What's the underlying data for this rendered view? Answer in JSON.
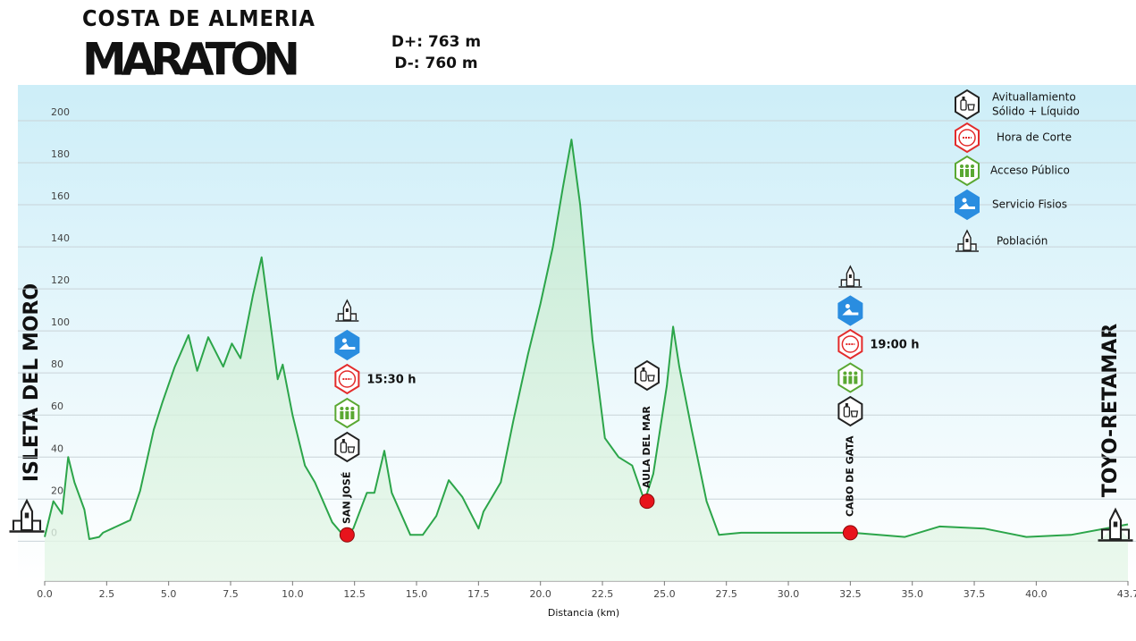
{
  "chart_data": {
    "type": "area",
    "logo_top": "COSTA DE ALMERIA",
    "logo_main": "MARATON",
    "ascent": "D+: 763 m",
    "descent": "D-: 760 m",
    "start": "ISLETA DEL MORO",
    "finish": "TOYO-RETAMAR",
    "xlabel": "Distancia (km)",
    "color": "#2ca54a",
    "x": [
      0,
      0.35,
      0.7,
      0.95,
      1.2,
      1.6,
      1.8,
      2.2,
      2.35,
      3.45,
      3.85,
      4.4,
      4.75,
      5.25,
      5.8,
      6.15,
      6.6,
      7.2,
      7.55,
      7.9,
      8.4,
      8.75,
      9.1,
      9.4,
      9.6,
      10.0,
      10.5,
      10.9,
      11.6,
      12.1,
      12.45,
      13.0,
      13.3,
      13.7,
      14.0,
      14.75,
      15.25,
      15.8,
      16.3,
      16.85,
      17.5,
      17.7,
      18.4,
      18.9,
      19.5,
      20.0,
      20.5,
      20.9,
      21.25,
      21.6,
      22.1,
      22.6,
      23.15,
      23.7,
      24.2,
      24.55,
      25.1,
      25.35,
      25.6,
      26.1,
      26.7,
      27.2,
      28.1,
      31.6,
      32.6,
      34.7,
      36.1,
      37.9,
      39.6,
      41.4,
      43.7
    ],
    "values": [
      2,
      19,
      13,
      40,
      28,
      15,
      1,
      2,
      4,
      10,
      24,
      53,
      66,
      83,
      98,
      81,
      97,
      83,
      94,
      87,
      117,
      135,
      104,
      77,
      84,
      60,
      36,
      28,
      9,
      2,
      6,
      23,
      23,
      43,
      23,
      3,
      3,
      12,
      29,
      21,
      6,
      14,
      28,
      57,
      89,
      113,
      140,
      168,
      191,
      160,
      96,
      49,
      40,
      36,
      19,
      32,
      74,
      102,
      83,
      53,
      19,
      3,
      4,
      4,
      4,
      2,
      7,
      6,
      2,
      3,
      8
    ],
    "xlim": [
      0,
      43.7
    ],
    "ylim": [
      -19,
      217
    ],
    "xticks": [
      {
        "value": 0,
        "label": "0.0"
      },
      2.5,
      {
        "value": 5,
        "label": "5.0"
      },
      7.5,
      {
        "value": 10,
        "label": "10.0"
      },
      12.5,
      {
        "value": 15,
        "label": "15.0"
      },
      17.5,
      {
        "value": 20,
        "label": "20.0"
      },
      22.5,
      {
        "value": 25,
        "label": "25.0"
      },
      27.5,
      {
        "value": 30,
        "label": "30.0"
      },
      32.5,
      {
        "value": 35,
        "label": "35.0"
      },
      37.5,
      {
        "value": 40,
        "label": "40.0"
      },
      43.7
    ],
    "yticks": [
      0,
      20,
      40,
      60,
      80,
      100,
      120,
      140,
      160,
      180,
      200
    ],
    "grid": true,
    "marker_color": "#e8141c",
    "points": [
      {
        "name": "SAN JOSÉ",
        "x": 12.2,
        "y": 3,
        "cutoff": "15:30 h"
      },
      {
        "name": "AULA DEL MAR",
        "x": 24.3,
        "y": 19
      },
      {
        "name": "CABO DE GATA",
        "x": 32.5,
        "y": 4,
        "cutoff": "19:00 h"
      }
    ],
    "legend": [
      {
        "lines": [
          "Avituallamiento",
          "Sólido + Líquido"
        ]
      },
      {
        "lines": [
          "Hora de Corte"
        ]
      },
      {
        "lines": [
          "Acceso Público"
        ]
      },
      {
        "lines": [
          "Servicio Fisios"
        ]
      },
      {
        "lines": [
          "Población"
        ]
      }
    ]
  }
}
